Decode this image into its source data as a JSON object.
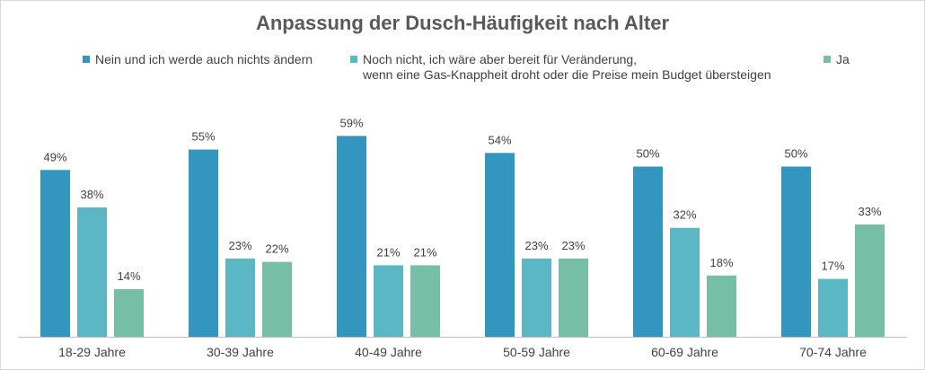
{
  "chart_data": {
    "type": "bar",
    "title": "Anpassung der Dusch-Häufigkeit nach Alter",
    "categories": [
      "18-29 Jahre",
      "30-39 Jahre",
      "40-49 Jahre",
      "50-59 Jahre",
      "60-69 Jahre",
      "70-74 Jahre"
    ],
    "series": [
      {
        "name": "Nein und ich werde auch nichts ändern",
        "color": "#3296BE",
        "values": [
          49,
          55,
          59,
          54,
          50,
          50
        ]
      },
      {
        "name": "Noch nicht, ich wäre aber bereit für Veränderung,\nwenn eine Gas-Knappheit droht oder die Preise mein Budget übersteigen",
        "color": "#5BB7C3",
        "values": [
          38,
          23,
          21,
          23,
          32,
          17
        ]
      },
      {
        "name": "Ja",
        "color": "#76BFA6",
        "values": [
          14,
          22,
          21,
          23,
          18,
          33
        ]
      }
    ],
    "value_suffix": "%",
    "ylim": [
      0,
      62
    ],
    "grid": false,
    "legend_position": "top"
  }
}
